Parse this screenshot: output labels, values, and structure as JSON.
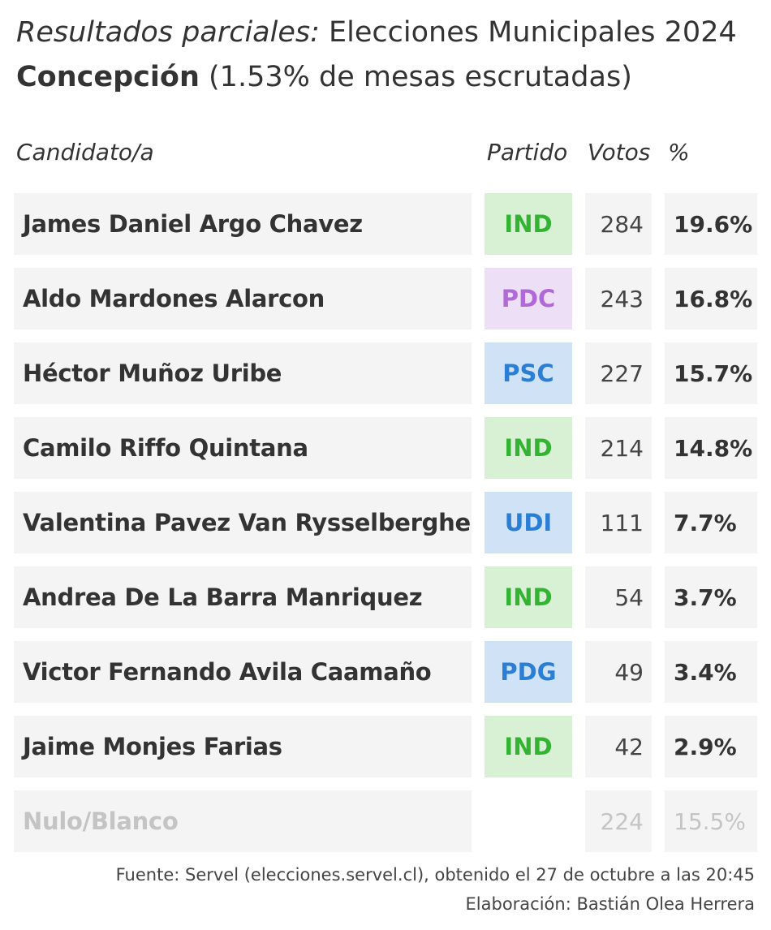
{
  "header": {
    "title_italic": "Resultados parciales:",
    "title_rest": " Elecciones Municipales 2024",
    "place": "Concepción",
    "progress": " (1.53% de mesas escrutadas)"
  },
  "columns": {
    "candidate": "Candidato/a",
    "party": "Partido",
    "votes": "Votos",
    "percent": "%"
  },
  "rows": [
    {
      "name": "James Daniel Argo Chavez",
      "party": "IND",
      "votes": "284",
      "pct": "19.6%",
      "party_color": "#32b432",
      "party_bg": "#d8f0d4"
    },
    {
      "name": "Aldo Mardones Alarcon",
      "party": "PDC",
      "votes": "243",
      "pct": "16.8%",
      "party_color": "#b06ad8",
      "party_bg": "#ede0f6"
    },
    {
      "name": "Héctor Muñoz Uribe",
      "party": "PSC",
      "votes": "227",
      "pct": "15.7%",
      "party_color": "#2a7fd4",
      "party_bg": "#d0e2f6"
    },
    {
      "name": "Camilo Riffo Quintana",
      "party": "IND",
      "votes": "214",
      "pct": "14.8%",
      "party_color": "#32b432",
      "party_bg": "#d8f0d4"
    },
    {
      "name": "Valentina Pavez Van Rysselberghe",
      "party": "UDI",
      "votes": "111",
      "pct": "7.7%",
      "party_color": "#2a7fd4",
      "party_bg": "#d0e2f6"
    },
    {
      "name": "Andrea De La Barra Manriquez",
      "party": "IND",
      "votes": "54",
      "pct": "3.7%",
      "party_color": "#32b432",
      "party_bg": "#d8f0d4"
    },
    {
      "name": "Victor Fernando Avila Caamaño",
      "party": "PDG",
      "votes": "49",
      "pct": "3.4%",
      "party_color": "#2a7fd4",
      "party_bg": "#d0e2f6"
    },
    {
      "name": "Jaime Monjes Farias",
      "party": "IND",
      "votes": "42",
      "pct": "2.9%",
      "party_color": "#32b432",
      "party_bg": "#d8f0d4"
    }
  ],
  "null_row": {
    "name": "Nulo/Blanco",
    "party": "",
    "votes": "224",
    "pct": "15.5%"
  },
  "footer": {
    "source": "Fuente: Servel (elecciones.servel.cl), obtenido el 27 de octubre a las 20:45",
    "credit": "Elaboración: Bastián Olea Herrera"
  }
}
